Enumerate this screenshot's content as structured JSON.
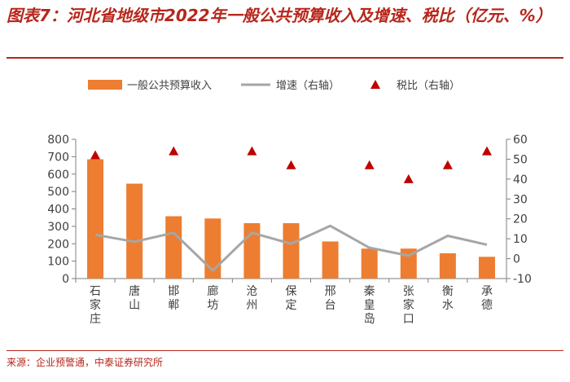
{
  "title": "图表7：河北省地级市2022年一般公共预算收入及增速、税比（亿元、%）",
  "source": "来源：企业预警通，中泰证券研究所",
  "colors": {
    "bar": "#ed7d31",
    "line": "#a6a6a6",
    "marker": "#c00000",
    "accent": "#b7261b",
    "axis": "#7f7f7f",
    "text": "#404040"
  },
  "chart_data": {
    "type": "bar",
    "title": "河北省地级市2022年一般公共预算收入及增速、税比（亿元、%）",
    "categories": [
      "石家庄",
      "唐山",
      "邯郸",
      "廊坊",
      "沧州",
      "保定",
      "邢台",
      "秦皇岛",
      "张家口",
      "衡水",
      "承德"
    ],
    "category_labels": [
      [
        "石",
        "家",
        "庄"
      ],
      [
        "唐",
        "山"
      ],
      [
        "邯",
        "郸"
      ],
      [
        "廊",
        "坊"
      ],
      [
        "沧",
        "州"
      ],
      [
        "保",
        "定"
      ],
      [
        "邢",
        "台"
      ],
      [
        "秦",
        "皇",
        "岛"
      ],
      [
        "张",
        "家",
        "口"
      ],
      [
        "衡",
        "水"
      ],
      [
        "承",
        "德"
      ]
    ],
    "series": [
      {
        "name": "一般公共预算收入",
        "type": "bar",
        "axis": "left",
        "values": [
          685,
          545,
          358,
          345,
          318,
          318,
          213,
          172,
          172,
          145,
          125
        ]
      },
      {
        "name": "增速（右轴）",
        "type": "line",
        "axis": "right",
        "values": [
          12,
          8.5,
          13,
          -6,
          13,
          7.5,
          16.5,
          5.5,
          1.5,
          11.5,
          7
        ]
      },
      {
        "name": "税比（右轴）",
        "type": "scatter",
        "axis": "right",
        "values": [
          52,
          null,
          54,
          null,
          54,
          47,
          null,
          47,
          40,
          47,
          54
        ]
      }
    ],
    "ylim_left": [
      0,
      800
    ],
    "yticks_left": [
      0,
      100,
      200,
      300,
      400,
      500,
      600,
      700,
      800
    ],
    "ylim_right": [
      -10,
      60
    ],
    "yticks_right": [
      -10,
      0,
      10,
      20,
      30,
      40,
      50,
      60
    ],
    "legend": [
      "一般公共预算收入",
      "增速（右轴）",
      "税比（右轴）"
    ],
    "legend_position": "top",
    "grid": false
  }
}
